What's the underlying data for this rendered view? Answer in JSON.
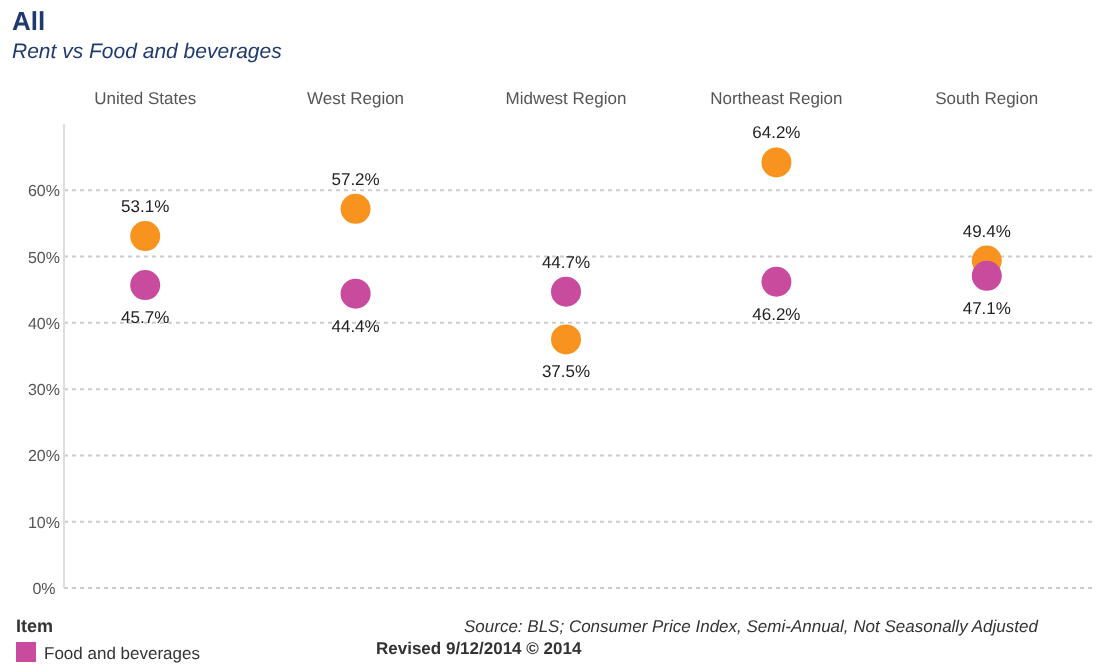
{
  "chart_data": {
    "type": "scatter",
    "title": "All",
    "subtitle": "Rent vs Food and beverages",
    "categories": [
      "United States",
      "West Region",
      "Midwest Region",
      "Northeast Region",
      "South Region"
    ],
    "series": [
      {
        "color": "#f7931e",
        "values": [
          53.1,
          57.2,
          37.5,
          64.2,
          49.4
        ],
        "value_labels": [
          "53.1%",
          "57.2%",
          "37.5%",
          "64.2%",
          "49.4%"
        ]
      },
      {
        "name": "Food and beverages",
        "color": "#c84b9e",
        "values": [
          45.7,
          44.4,
          44.7,
          46.2,
          47.1
        ],
        "value_labels": [
          "45.7%",
          "44.4%",
          "44.7%",
          "46.2%",
          "47.1%"
        ]
      }
    ],
    "ylim": [
      0,
      70
    ],
    "yticks": [
      {
        "value": 0,
        "label": "0%"
      },
      {
        "value": 10,
        "label": "10%"
      },
      {
        "value": 20,
        "label": "20%"
      },
      {
        "value": 30,
        "label": "30%"
      },
      {
        "value": 40,
        "label": "40%"
      },
      {
        "value": 50,
        "label": "50%"
      },
      {
        "value": 60,
        "label": "60%"
      }
    ],
    "grid": "y",
    "marker": "circle",
    "legend": "bottom left",
    "legend_title": "Item",
    "annotations": [
      "Source:  BLS; Consumer Price Index, Semi-Annual, Not Seasonally Adjusted",
      "Revised 9/12/2014 © 2014"
    ]
  }
}
